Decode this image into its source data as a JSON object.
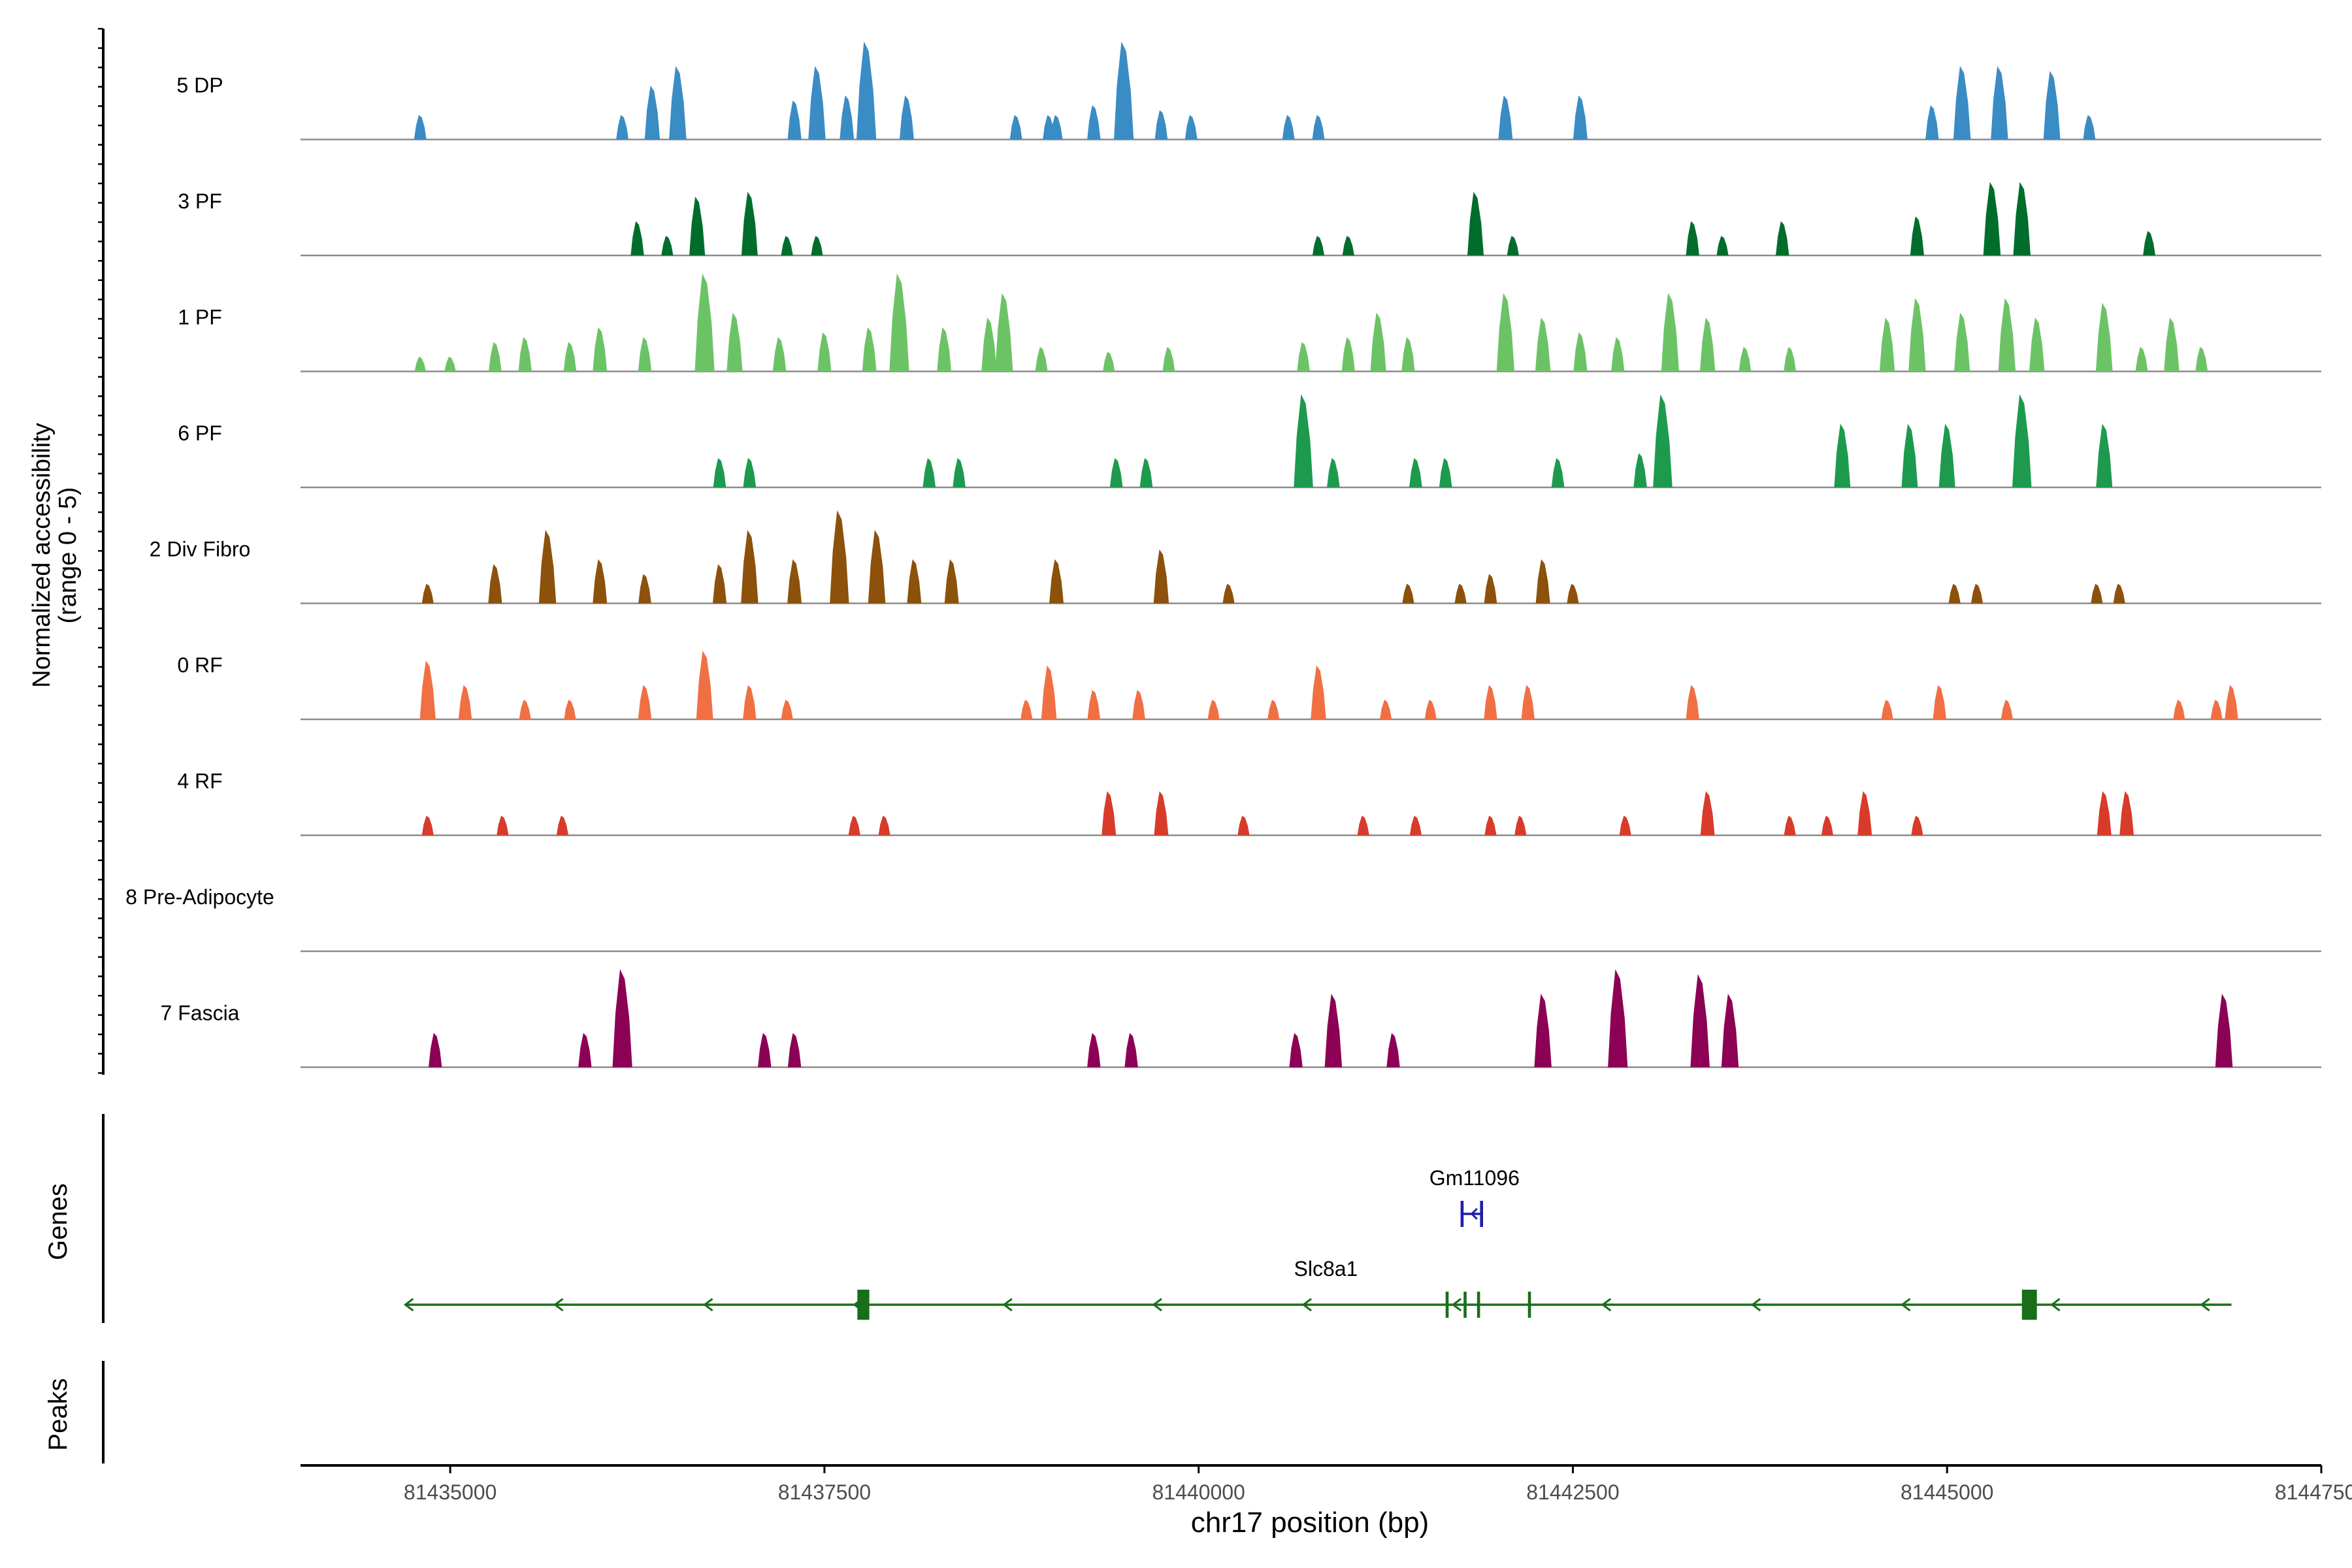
{
  "chart_data": {
    "type": "area",
    "title": "",
    "xlabel": "chr17 position (bp)",
    "ylabel": "Normalized accessibility",
    "ylabel_sub": "(range 0 - 5)",
    "y_range": [
      0,
      5
    ],
    "xlim": [
      81434000,
      81447500
    ],
    "x_ticks": [
      81435000,
      81437500,
      81440000,
      81442500,
      81445000,
      81447500
    ],
    "x_tick_labels": [
      "81435000",
      "81437500",
      "81440000",
      "81442500",
      "81445000",
      "81447500"
    ],
    "tracks": [
      {
        "name": "5 DP",
        "color": "#3a8cc4",
        "peaks": [
          [
            81434800,
            0.25
          ],
          [
            81436150,
            0.25
          ],
          [
            81436350,
            0.55
          ],
          [
            81436520,
            0.75
          ],
          [
            81437300,
            0.4
          ],
          [
            81437450,
            0.75
          ],
          [
            81437650,
            0.45
          ],
          [
            81437780,
            1.0
          ],
          [
            81438050,
            0.45
          ],
          [
            81438780,
            0.25
          ],
          [
            81439050,
            0.25
          ],
          [
            81439300,
            0.35
          ],
          [
            81439000,
            0.25
          ],
          [
            81439500,
            1.0
          ],
          [
            81439750,
            0.3
          ],
          [
            81439950,
            0.25
          ],
          [
            81440600,
            0.25
          ],
          [
            81440800,
            0.25
          ],
          [
            81442050,
            0.45
          ],
          [
            81442550,
            0.45
          ],
          [
            81444900,
            0.35
          ],
          [
            81445100,
            0.75
          ],
          [
            81445350,
            0.75
          ],
          [
            81445700,
            0.7
          ],
          [
            81445950,
            0.25
          ]
        ]
      },
      {
        "name": "3 PF",
        "color": "#006d2c",
        "peaks": [
          [
            81436250,
            0.35
          ],
          [
            81436450,
            0.2
          ],
          [
            81436650,
            0.6
          ],
          [
            81437000,
            0.65
          ],
          [
            81437250,
            0.2
          ],
          [
            81437450,
            0.2
          ],
          [
            81440800,
            0.2
          ],
          [
            81441000,
            0.2
          ],
          [
            81441850,
            0.65
          ],
          [
            81442100,
            0.2
          ],
          [
            81443300,
            0.35
          ],
          [
            81443500,
            0.2
          ],
          [
            81443900,
            0.35
          ],
          [
            81444800,
            0.4
          ],
          [
            81445300,
            0.75
          ],
          [
            81445500,
            0.75
          ],
          [
            81446350,
            0.25
          ]
        ]
      },
      {
        "name": "1 PF",
        "color": "#6cc366",
        "peaks": [
          [
            81434800,
            0.15
          ],
          [
            81435000,
            0.15
          ],
          [
            81435300,
            0.3
          ],
          [
            81435500,
            0.35
          ],
          [
            81435800,
            0.3
          ],
          [
            81436000,
            0.45
          ],
          [
            81436300,
            0.35
          ],
          [
            81436700,
            1.0
          ],
          [
            81436900,
            0.6
          ],
          [
            81437200,
            0.35
          ],
          [
            81437500,
            0.4
          ],
          [
            81437800,
            0.45
          ],
          [
            81438000,
            1.0
          ],
          [
            81438300,
            0.45
          ],
          [
            81438600,
            0.55
          ],
          [
            81438700,
            0.8
          ],
          [
            81438950,
            0.25
          ],
          [
            81439400,
            0.2
          ],
          [
            81439800,
            0.25
          ],
          [
            81440700,
            0.3
          ],
          [
            81441000,
            0.35
          ],
          [
            81441200,
            0.6
          ],
          [
            81441400,
            0.35
          ],
          [
            81442050,
            0.8
          ],
          [
            81442300,
            0.55
          ],
          [
            81442550,
            0.4
          ],
          [
            81442800,
            0.35
          ],
          [
            81443150,
            0.8
          ],
          [
            81443400,
            0.55
          ],
          [
            81443650,
            0.25
          ],
          [
            81443950,
            0.25
          ],
          [
            81444600,
            0.55
          ],
          [
            81444800,
            0.75
          ],
          [
            81445100,
            0.6
          ],
          [
            81445400,
            0.75
          ],
          [
            81445600,
            0.55
          ],
          [
            81446050,
            0.7
          ],
          [
            81446300,
            0.25
          ],
          [
            81446500,
            0.55
          ],
          [
            81446700,
            0.25
          ]
        ]
      },
      {
        "name": "6 PF",
        "color": "#1d9a4e",
        "peaks": [
          [
            81436800,
            0.3
          ],
          [
            81437000,
            0.3
          ],
          [
            81438200,
            0.3
          ],
          [
            81438400,
            0.3
          ],
          [
            81439450,
            0.3
          ],
          [
            81439650,
            0.3
          ],
          [
            81440700,
            0.95
          ],
          [
            81440900,
            0.3
          ],
          [
            81441450,
            0.3
          ],
          [
            81441650,
            0.3
          ],
          [
            81442400,
            0.3
          ],
          [
            81442950,
            0.35
          ],
          [
            81443100,
            0.95
          ],
          [
            81444300,
            0.65
          ],
          [
            81444750,
            0.65
          ],
          [
            81445000,
            0.65
          ],
          [
            81445500,
            0.95
          ],
          [
            81446050,
            0.65
          ]
        ]
      },
      {
        "name": "2 Div Fibro",
        "color": "#8c510a",
        "peaks": [
          [
            81434850,
            0.2
          ],
          [
            81435300,
            0.4
          ],
          [
            81435650,
            0.75
          ],
          [
            81436000,
            0.45
          ],
          [
            81436300,
            0.3
          ],
          [
            81436800,
            0.4
          ],
          [
            81437000,
            0.75
          ],
          [
            81437300,
            0.45
          ],
          [
            81437600,
            0.95
          ],
          [
            81437850,
            0.75
          ],
          [
            81438100,
            0.45
          ],
          [
            81438350,
            0.45
          ],
          [
            81439050,
            0.45
          ],
          [
            81439750,
            0.55
          ],
          [
            81440200,
            0.2
          ],
          [
            81441400,
            0.2
          ],
          [
            81441750,
            0.2
          ],
          [
            81441950,
            0.3
          ],
          [
            81442300,
            0.45
          ],
          [
            81442500,
            0.2
          ],
          [
            81445050,
            0.2
          ],
          [
            81445200,
            0.2
          ],
          [
            81446000,
            0.2
          ],
          [
            81446150,
            0.2
          ]
        ]
      },
      {
        "name": "0 RF",
        "color": "#f07044",
        "peaks": [
          [
            81434850,
            0.6
          ],
          [
            81435100,
            0.35
          ],
          [
            81435500,
            0.2
          ],
          [
            81435800,
            0.2
          ],
          [
            81436300,
            0.35
          ],
          [
            81436700,
            0.7
          ],
          [
            81437000,
            0.35
          ],
          [
            81437250,
            0.2
          ],
          [
            81438850,
            0.2
          ],
          [
            81439000,
            0.55
          ],
          [
            81439300,
            0.3
          ],
          [
            81439600,
            0.3
          ],
          [
            81440100,
            0.2
          ],
          [
            81440500,
            0.2
          ],
          [
            81440800,
            0.55
          ],
          [
            81441250,
            0.2
          ],
          [
            81441550,
            0.2
          ],
          [
            81441950,
            0.35
          ],
          [
            81442200,
            0.35
          ],
          [
            81443300,
            0.35
          ],
          [
            81444600,
            0.2
          ],
          [
            81444950,
            0.35
          ],
          [
            81445400,
            0.2
          ],
          [
            81446550,
            0.2
          ],
          [
            81446800,
            0.2
          ],
          [
            81446900,
            0.35
          ]
        ]
      },
      {
        "name": "4 RF",
        "color": "#d83b2a",
        "peaks": [
          [
            81434850,
            0.2
          ],
          [
            81435350,
            0.2
          ],
          [
            81435750,
            0.2
          ],
          [
            81437700,
            0.2
          ],
          [
            81437900,
            0.2
          ],
          [
            81439400,
            0.45
          ],
          [
            81439750,
            0.45
          ],
          [
            81440300,
            0.2
          ],
          [
            81441100,
            0.2
          ],
          [
            81441450,
            0.2
          ],
          [
            81441950,
            0.2
          ],
          [
            81442150,
            0.2
          ],
          [
            81442850,
            0.2
          ],
          [
            81443400,
            0.45
          ],
          [
            81443950,
            0.2
          ],
          [
            81444200,
            0.2
          ],
          [
            81444450,
            0.45
          ],
          [
            81444800,
            0.2
          ],
          [
            81446050,
            0.45
          ],
          [
            81446200,
            0.45
          ]
        ]
      },
      {
        "name": "8 Pre-Adipocyte",
        "color": "#555555",
        "peaks": []
      },
      {
        "name": "7 Fascia",
        "color": "#8c0055",
        "peaks": [
          [
            81434900,
            0.35
          ],
          [
            81435900,
            0.35
          ],
          [
            81436150,
            1.0
          ],
          [
            81437100,
            0.35
          ],
          [
            81437300,
            0.35
          ],
          [
            81439300,
            0.35
          ],
          [
            81439550,
            0.35
          ],
          [
            81440650,
            0.35
          ],
          [
            81440900,
            0.75
          ],
          [
            81441300,
            0.35
          ],
          [
            81442300,
            0.75
          ],
          [
            81442800,
            1.0
          ],
          [
            81443350,
            0.95
          ],
          [
            81443550,
            0.75
          ],
          [
            81446850,
            0.75
          ]
        ]
      }
    ],
    "gene_panel_label": "Genes",
    "peaks_panel_label": "Peaks",
    "genes": [
      {
        "name": "Gm11096",
        "color": "#1f1fa8",
        "strand": "-",
        "start": 81441750,
        "end": 81441900,
        "exons": [
          [
            81441750,
            81441770
          ],
          [
            81441880,
            81441900
          ]
        ]
      },
      {
        "name": "Slc8a1",
        "color": "#1a6e1a",
        "strand": "-",
        "start": 81434700,
        "end": 81446900,
        "exons": [
          [
            81437720,
            81437800
          ],
          [
            81441650,
            81441670
          ],
          [
            81441770,
            81441790
          ],
          [
            81441860,
            81441880
          ],
          [
            81442200,
            81442220
          ],
          [
            81445500,
            81445600
          ]
        ]
      }
    ]
  }
}
